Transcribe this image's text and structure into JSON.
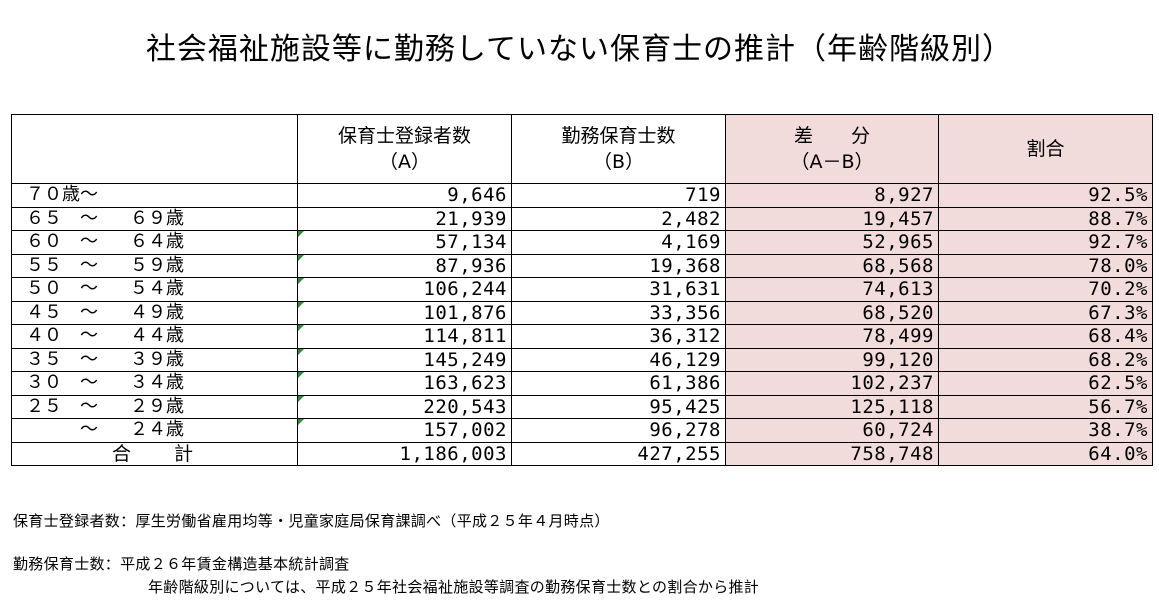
{
  "title": "社会福祉施設等に勤務していない保育士の推計（年齢階級別）",
  "table": {
    "headers": {
      "col_a_line1": "保育士登録者数",
      "col_a_line2": "（A）",
      "col_b_line1": "勤務保育士数",
      "col_b_line2": "（B）",
      "col_diff_line1": "差　　分",
      "col_diff_line2": "（A－B）",
      "col_ratio": "割合"
    },
    "rows": [
      {
        "age_a": "７０歳～",
        "age_t": "",
        "age_b": "",
        "a": "9,646",
        "b": "719",
        "diff": "8,927",
        "ratio": "92.5%"
      },
      {
        "age_a": "６５",
        "age_t": "～",
        "age_b": "６９歳",
        "a": "21,939",
        "b": "2,482",
        "diff": "19,457",
        "ratio": "88.7%"
      },
      {
        "age_a": "６０",
        "age_t": "～",
        "age_b": "６４歳",
        "a": "57,134",
        "b": "4,169",
        "diff": "52,965",
        "ratio": "92.7%"
      },
      {
        "age_a": "５５",
        "age_t": "～",
        "age_b": "５９歳",
        "a": "87,936",
        "b": "19,368",
        "diff": "68,568",
        "ratio": "78.0%"
      },
      {
        "age_a": "５０",
        "age_t": "～",
        "age_b": "５４歳",
        "a": "106,244",
        "b": "31,631",
        "diff": "74,613",
        "ratio": "70.2%"
      },
      {
        "age_a": "４５",
        "age_t": "～",
        "age_b": "４９歳",
        "a": "101,876",
        "b": "33,356",
        "diff": "68,520",
        "ratio": "67.3%"
      },
      {
        "age_a": "４０",
        "age_t": "～",
        "age_b": "４４歳",
        "a": "114,811",
        "b": "36,312",
        "diff": "78,499",
        "ratio": "68.4%"
      },
      {
        "age_a": "３５",
        "age_t": "～",
        "age_b": "３９歳",
        "a": "145,249",
        "b": "46,129",
        "diff": "99,120",
        "ratio": "68.2%"
      },
      {
        "age_a": "３０",
        "age_t": "～",
        "age_b": "３４歳",
        "a": "163,623",
        "b": "61,386",
        "diff": "102,237",
        "ratio": "62.5%"
      },
      {
        "age_a": "２５",
        "age_t": "～",
        "age_b": "２９歳",
        "a": "220,543",
        "b": "95,425",
        "diff": "125,118",
        "ratio": "56.7%"
      },
      {
        "age_a": "",
        "age_t": "～",
        "age_b": "２４歳",
        "a": "157,002",
        "b": "96,278",
        "diff": "60,724",
        "ratio": "38.7%"
      }
    ],
    "total": {
      "label_1": "合",
      "label_2": "計",
      "a": "1,186,003",
      "b": "427,255",
      "diff": "758,748",
      "ratio": "64.0%"
    }
  },
  "notes": {
    "line1": "保育士登録者数：厚生労働省雇用均等・児童家庭局保育課調べ（平成２５年４月時点）",
    "line2": "勤務保育士数：平成２６年賃金構造基本統計調査",
    "line3": "年齢階級別については、平成２５年社会福祉施設等調査の勤務保育士数との割合から推計"
  },
  "colors": {
    "pink_fill": "#f2dcdb",
    "indicator_green": "#2e8b3a"
  }
}
